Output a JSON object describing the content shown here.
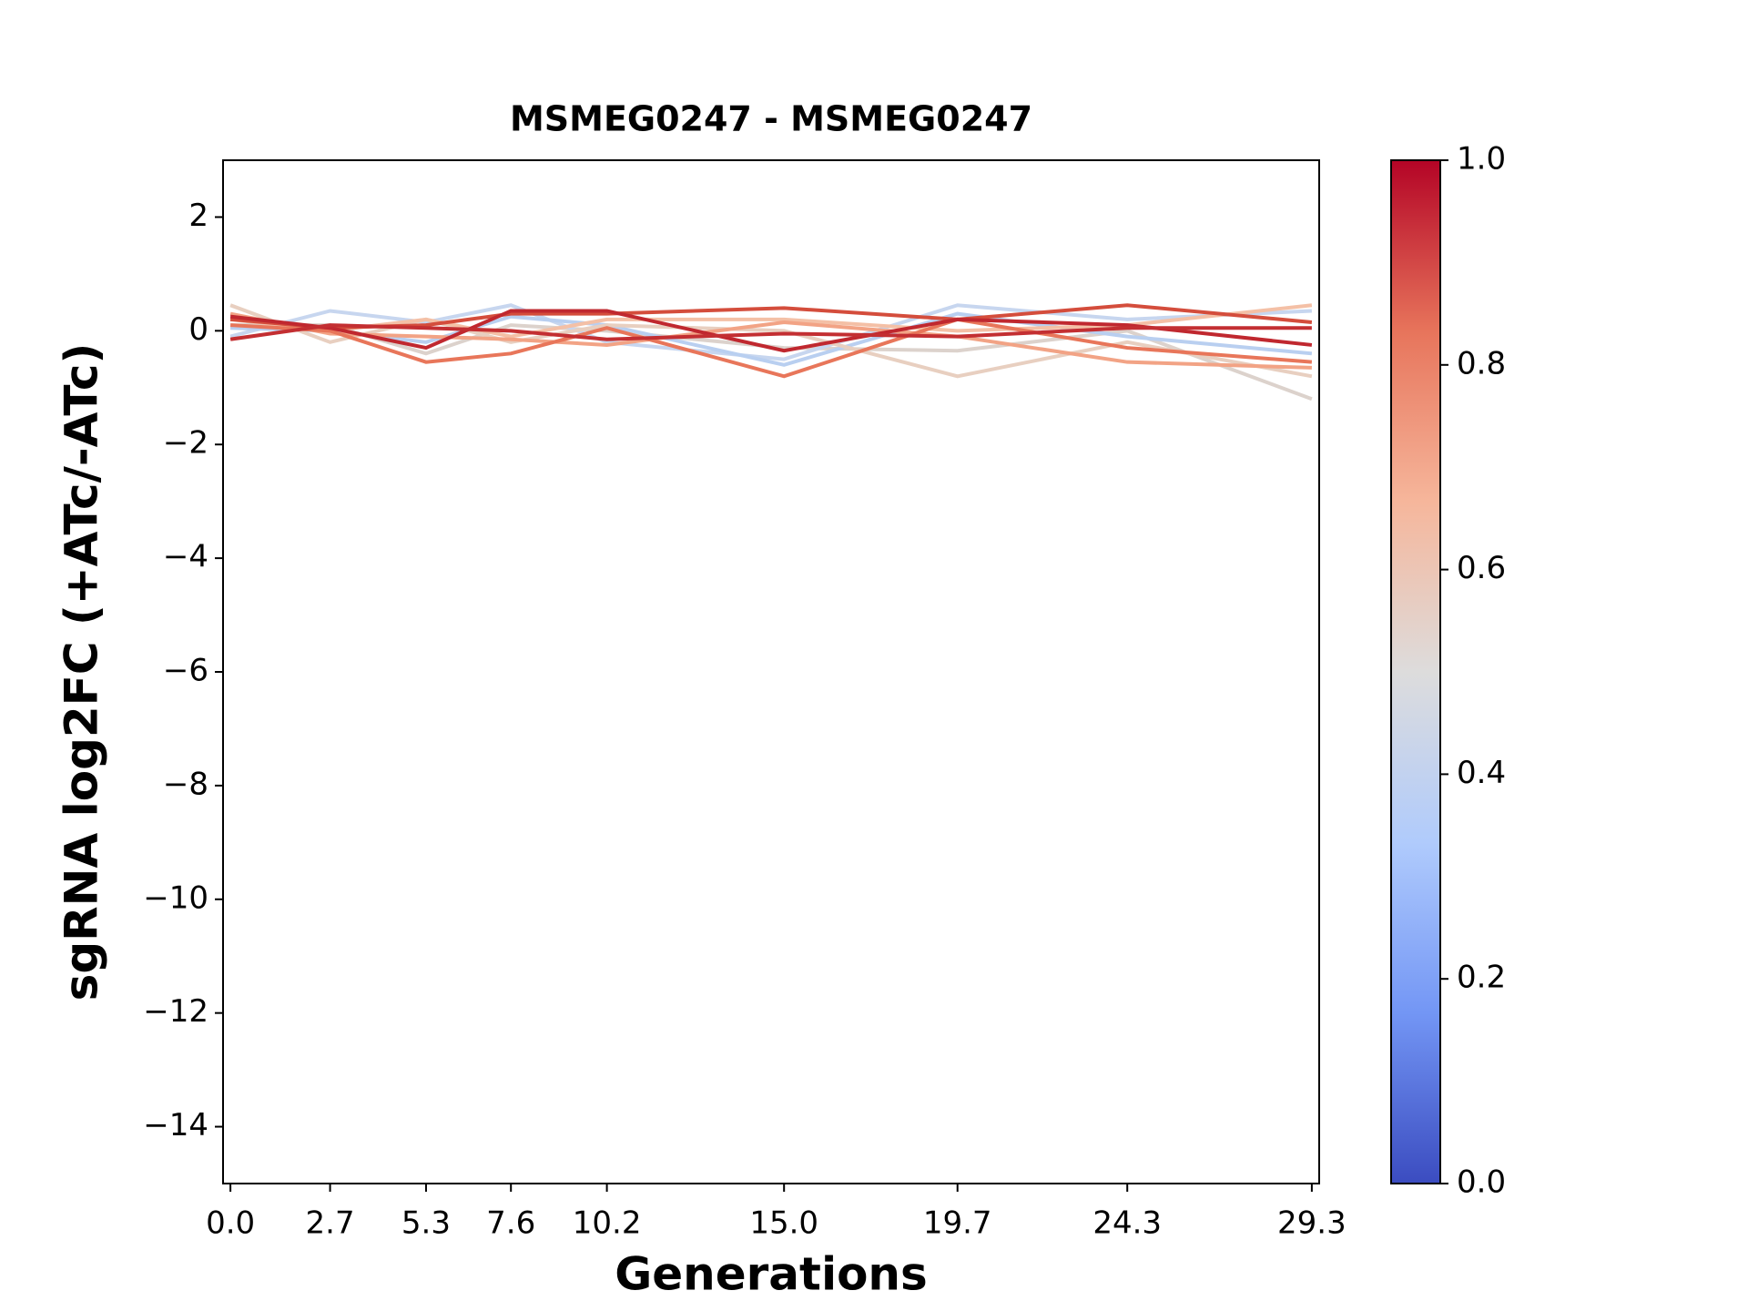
{
  "chart_data": {
    "type": "line",
    "title": "MSMEG0247 - MSMEG0247",
    "xlabel": "Generations",
    "ylabel": "sgRNA log2FC (+ATc/-ATc)",
    "x": [
      0,
      2.7,
      5.3,
      7.6,
      10.2,
      15,
      19.7,
      24.3,
      29.3
    ],
    "xlim": [
      -0.2,
      29.5
    ],
    "xticks": [
      {
        "value": 0,
        "label": "0.0"
      },
      2.7,
      5.3,
      7.6,
      10.2,
      {
        "value": 15,
        "label": "15.0"
      },
      19.7,
      24.3,
      29.3
    ],
    "ylim": [
      -15,
      3
    ],
    "yticks": [
      {
        "value": -14,
        "label": "−14"
      },
      {
        "value": -12,
        "label": "−12"
      },
      {
        "value": -10,
        "label": "−10"
      },
      {
        "value": -8,
        "label": "−8"
      },
      {
        "value": -6,
        "label": "−6"
      },
      {
        "value": -4,
        "label": "−4"
      },
      {
        "value": -2,
        "label": "−2"
      },
      0,
      2
    ],
    "series": [
      {
        "color": "#dcd2cc",
        "values": [
          0.1,
          0.1,
          -0.4,
          0.1,
          0.0,
          -0.3,
          -0.35,
          0.0,
          -1.2
        ]
      },
      {
        "color": "#c7d6ef",
        "values": [
          -0.1,
          0.35,
          0.15,
          0.45,
          -0.2,
          -0.5,
          0.45,
          0.2,
          0.35
        ]
      },
      {
        "color": "#b9cff0",
        "values": [
          0.05,
          0.0,
          -0.2,
          0.25,
          0.1,
          -0.6,
          0.3,
          -0.1,
          -0.4
        ]
      },
      {
        "color": "#e8cfc0",
        "values": [
          0.45,
          -0.2,
          0.2,
          -0.2,
          0.1,
          0.0,
          -0.8,
          -0.2,
          -0.8
        ]
      },
      {
        "color": "#f4c0a6",
        "values": [
          0.2,
          0.0,
          0.2,
          -0.1,
          0.2,
          0.2,
          0.0,
          0.1,
          0.45
        ]
      },
      {
        "color": "#f2a385",
        "values": [
          0.3,
          -0.05,
          -0.1,
          -0.15,
          -0.25,
          0.15,
          -0.1,
          -0.55,
          -0.65
        ]
      },
      {
        "color": "#e8765a",
        "values": [
          0.1,
          0.0,
          -0.55,
          -0.4,
          0.05,
          -0.8,
          0.2,
          -0.3,
          -0.55
        ]
      },
      {
        "color": "#d44d3c",
        "values": [
          0.2,
          0.05,
          0.1,
          0.3,
          0.3,
          0.4,
          0.2,
          0.45,
          0.15
        ]
      },
      {
        "color": "#c0282f",
        "values": [
          0.25,
          0.05,
          -0.3,
          0.35,
          0.35,
          -0.35,
          0.2,
          0.1,
          -0.25
        ]
      },
      {
        "color": "#c32f32",
        "values": [
          -0.15,
          0.1,
          0.05,
          0.0,
          -0.15,
          -0.05,
          -0.1,
          0.05,
          0.05
        ]
      }
    ],
    "colorbar": {
      "lim": [
        0,
        1
      ],
      "ticks": [
        {
          "value": 0,
          "label": "0.0"
        },
        0.2,
        0.4,
        0.6,
        0.8,
        {
          "value": 1,
          "label": "1.0"
        }
      ],
      "colors": [
        "#3b4cc0",
        "#7396f5",
        "#b0cbfc",
        "#dddcdc",
        "#f6b69b",
        "#e7745b",
        "#b40426"
      ]
    }
  }
}
